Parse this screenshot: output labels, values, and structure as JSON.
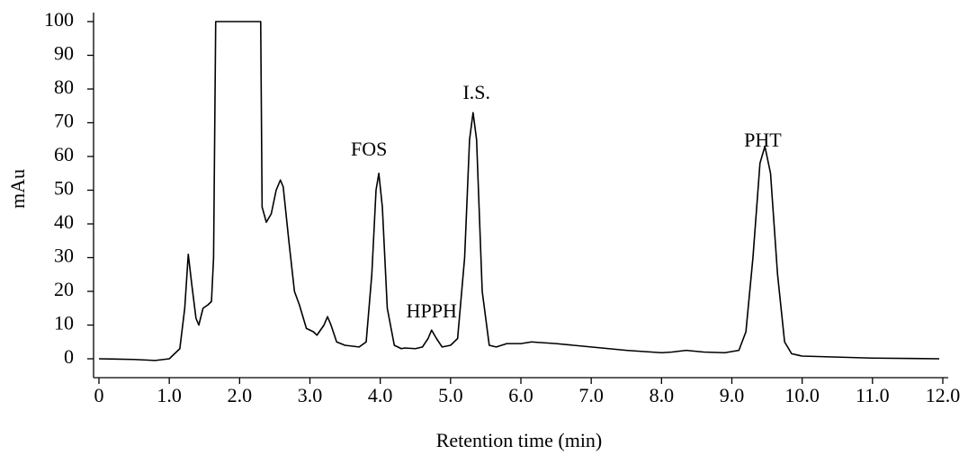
{
  "chart_data": {
    "type": "line",
    "xlabel": "Retention time (min)",
    "ylabel": "mAu",
    "color": "#000000",
    "xlim": [
      0,
      12
    ],
    "ylim": [
      0,
      100
    ],
    "xticks": [
      0,
      {
        "value": 1,
        "label": "1.0"
      },
      {
        "value": 2,
        "label": "2.0"
      },
      {
        "value": 3,
        "label": "3.0"
      },
      {
        "value": 4,
        "label": "4.0"
      },
      {
        "value": 5,
        "label": "5.0"
      },
      {
        "value": 6,
        "label": "6.0"
      },
      {
        "value": 7,
        "label": "7.0"
      },
      {
        "value": 8,
        "label": "8.0"
      },
      {
        "value": 9,
        "label": "9.0"
      },
      {
        "value": 10,
        "label": "10.0"
      },
      {
        "value": 11,
        "label": "11.0"
      },
      {
        "value": 12,
        "label": "12.0"
      }
    ],
    "yticks": [
      0,
      10,
      20,
      30,
      40,
      50,
      60,
      70,
      80,
      90,
      100
    ],
    "x": [
      0,
      0.5,
      0.8,
      1.0,
      1.15,
      1.22,
      1.27,
      1.32,
      1.38,
      1.42,
      1.48,
      1.55,
      1.6,
      1.63,
      1.66,
      2.3,
      2.32,
      2.38,
      2.45,
      2.52,
      2.58,
      2.62,
      2.7,
      2.78,
      2.85,
      2.95,
      3.05,
      3.1,
      3.2,
      3.25,
      3.3,
      3.38,
      3.5,
      3.7,
      3.8,
      3.88,
      3.94,
      3.98,
      4.03,
      4.1,
      4.2,
      4.3,
      4.35,
      4.5,
      4.6,
      4.68,
      4.73,
      4.8,
      4.88,
      5.0,
      5.1,
      5.2,
      5.27,
      5.32,
      5.37,
      5.45,
      5.55,
      5.65,
      5.8,
      6.0,
      6.15,
      6.5,
      7.0,
      7.5,
      8.0,
      8.15,
      8.35,
      8.6,
      8.9,
      9.1,
      9.2,
      9.3,
      9.4,
      9.47,
      9.55,
      9.65,
      9.75,
      9.85,
      10.0,
      11.0,
      11.95
    ],
    "values": [
      0,
      -0.2,
      -0.5,
      0,
      3,
      15,
      31,
      22,
      12,
      10,
      15,
      16,
      17,
      30,
      100,
      100,
      45,
      40.5,
      43,
      50,
      53,
      51,
      35,
      20,
      16,
      9,
      8,
      7,
      10,
      12.5,
      10,
      5,
      4,
      3.5,
      5,
      25,
      50,
      55,
      45,
      15,
      4,
      3,
      3.2,
      3,
      3.5,
      6,
      8.5,
      6,
      3.5,
      4,
      6,
      30,
      65,
      73,
      65,
      20,
      4,
      3.5,
      4.5,
      4.5,
      5,
      4.5,
      3.5,
      2.5,
      1.8,
      2,
      2.5,
      2,
      1.8,
      2.5,
      8,
      30,
      58,
      63,
      55,
      25,
      5,
      1.5,
      0.8,
      0.2,
      0
    ],
    "annotations": [
      {
        "text": "FOS",
        "x": 3.84,
        "y": 61.6
      },
      {
        "text": "HPPH",
        "x": 4.73,
        "y": 13.6
      },
      {
        "text": "I.S.",
        "x": 5.37,
        "y": 78.4
      },
      {
        "text": "PHT",
        "x": 9.44,
        "y": 64.3
      }
    ]
  }
}
